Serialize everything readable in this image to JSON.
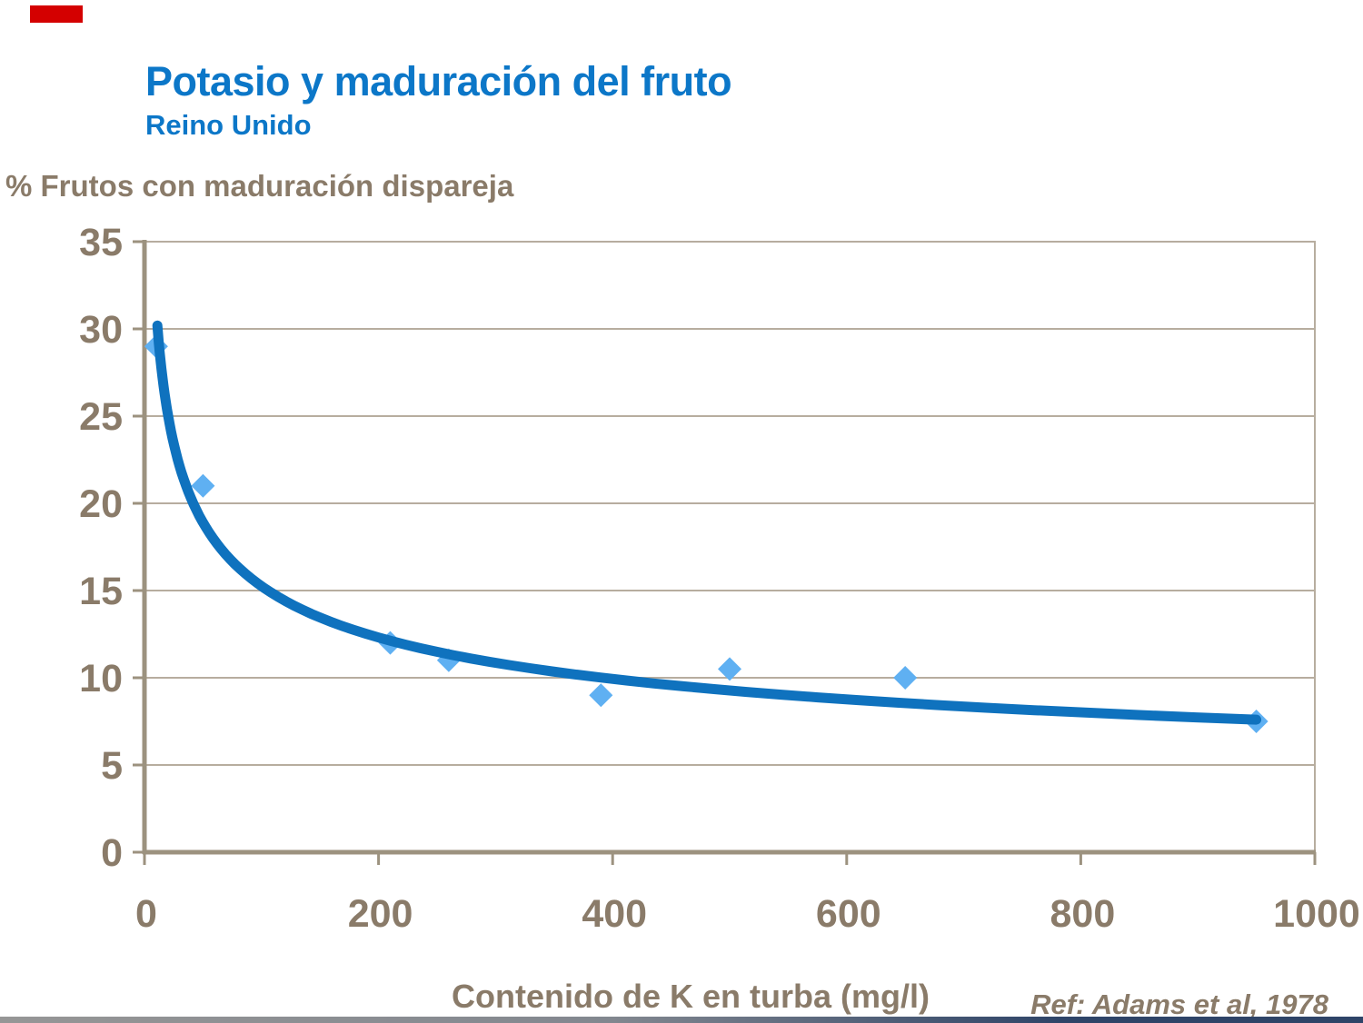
{
  "slide": {
    "title": "Potasio y maduración del fruto",
    "subtitle": "Reino Unido",
    "reference": "Ref: Adams et al, 1978",
    "accent_bar_color": "#d40000",
    "title_color": "#0c77c8",
    "text_color": "#8a7b69",
    "bottom_bar_color_left": "#969696",
    "bottom_bar_color_right": "#2e4468"
  },
  "chart_data": {
    "type": "scatter",
    "title": "",
    "ylabel": "% Frutos con maduración dispareja",
    "xlabel": "Contenido de K en turba (mg/l)",
    "xlim": [
      0,
      1000
    ],
    "ylim": [
      0,
      35
    ],
    "xticks": [
      0,
      200,
      400,
      600,
      800,
      1000
    ],
    "yticks": [
      0,
      5,
      10,
      15,
      20,
      25,
      30,
      35
    ],
    "grid": "horizontal",
    "legend": "none",
    "series": [
      {
        "name": "Frutos con maduración dispareja (%)",
        "marker": "diamond",
        "points": [
          {
            "x": 10,
            "y": 29
          },
          {
            "x": 50,
            "y": 21
          },
          {
            "x": 210,
            "y": 12
          },
          {
            "x": 260,
            "y": 11
          },
          {
            "x": 390,
            "y": 9
          },
          {
            "x": 500,
            "y": 10.5
          },
          {
            "x": 650,
            "y": 10
          },
          {
            "x": 950,
            "y": 7.5
          }
        ]
      }
    ],
    "trend_curve": {
      "type": "power",
      "formula": "y = a * x^b",
      "a": 63.4,
      "b": -0.3094,
      "x_start": 11,
      "x_end": 950
    },
    "point_color": "#5fb0f2",
    "curve_color": "#0f72be",
    "axis_color": "#9c927f",
    "grid_color": "#b7ad9f",
    "tick_label_color": "#8a7b69"
  }
}
